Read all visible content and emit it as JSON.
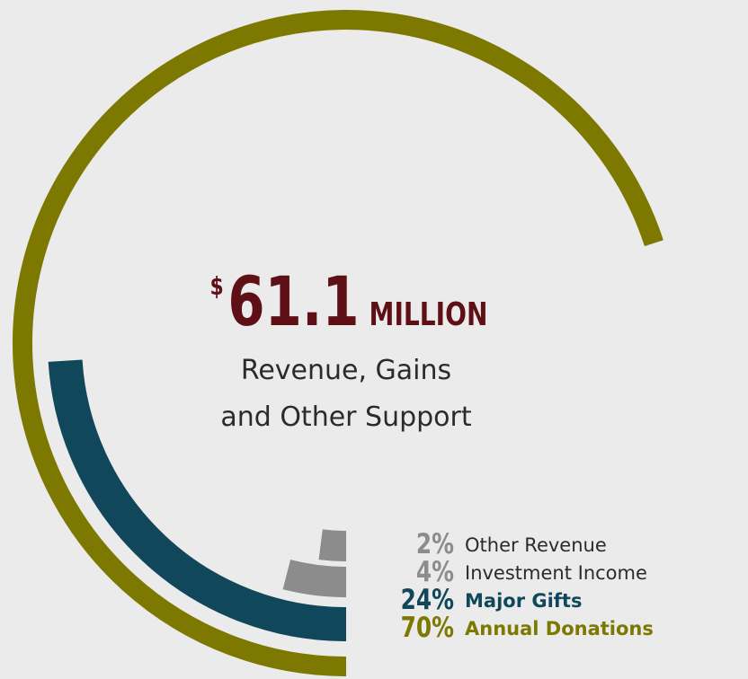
{
  "chart_data": {
    "type": "radial_bar",
    "headline": {
      "currency": "$",
      "amount": "61.1",
      "unit": "MILLION"
    },
    "subtitle": [
      "Revenue, Gains",
      "and Other Support"
    ],
    "categories": [
      "Other Revenue",
      "Investment Income",
      "Major Gifts",
      "Annual Donations"
    ],
    "values": [
      2,
      4,
      24,
      70
    ],
    "value_labels": [
      "2%",
      "4%",
      "24%",
      "70%"
    ],
    "colors": [
      "#8c8c8c",
      "#8c8c8c",
      "#10475a",
      "#7d7800"
    ],
    "label_colors": [
      "#2b2b2b",
      "#2b2b2b",
      "#10475a",
      "#7d7800"
    ],
    "bold_labels": [
      false,
      false,
      true,
      true
    ],
    "headline_color": "#5e1016"
  }
}
